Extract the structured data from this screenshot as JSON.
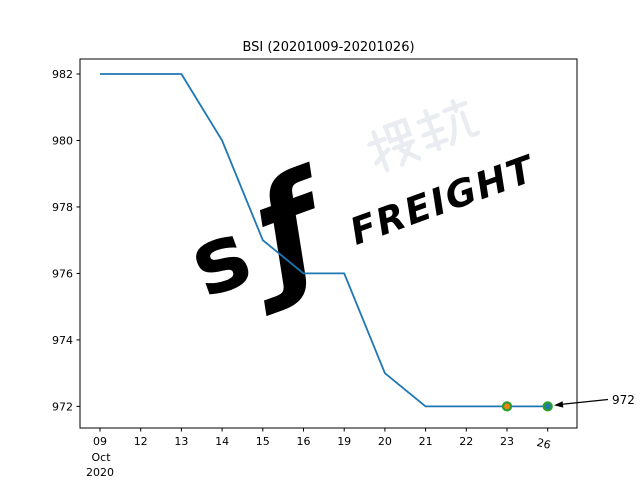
{
  "title": "BSI (20201009-20201026)",
  "axis": {
    "month": "Oct",
    "year": "2020"
  },
  "annotation_label": "972",
  "watermark": {
    "logo_s": "s",
    "logo_f": "ƒ",
    "latin": "FREIGHT"
  },
  "colors": {
    "line": "#1f77b4",
    "marker_edge": "#2ca02c",
    "marker_23_fill": "#ff7f0e",
    "marker_26_fill": "#1f77b4",
    "axis": "#000000",
    "background": "#ffffff",
    "watermark_blue": "#dce8f4",
    "watermark_gray": "#eef0f3"
  },
  "chart_data": {
    "type": "line",
    "title": "BSI (20201009-20201026)",
    "xlabel": "",
    "ylabel": "",
    "x_tick_labels": [
      "09",
      "12",
      "13",
      "14",
      "15",
      "16",
      "19",
      "20",
      "21",
      "22",
      "23",
      "26"
    ],
    "x_axis_month": "Oct",
    "x_axis_year": "2020",
    "y_ticks": [
      972,
      974,
      976,
      978,
      980,
      982
    ],
    "ylim": [
      971.4,
      982.5
    ],
    "grid": false,
    "legend": "none",
    "series": [
      {
        "name": "BSI",
        "color": "#1f77b4",
        "values": [
          982,
          982,
          982,
          980,
          977,
          976,
          976,
          973,
          972,
          972,
          972,
          972
        ]
      }
    ],
    "markers": [
      {
        "x_label": "23",
        "value": 972,
        "fill": "#ff7f0e",
        "edge": "#2ca02c"
      },
      {
        "x_label": "26",
        "value": 972,
        "fill": "#1f77b4",
        "edge": "#2ca02c"
      }
    ],
    "annotation": {
      "text": "972",
      "target_x_label": "26",
      "target_value": 972
    }
  }
}
